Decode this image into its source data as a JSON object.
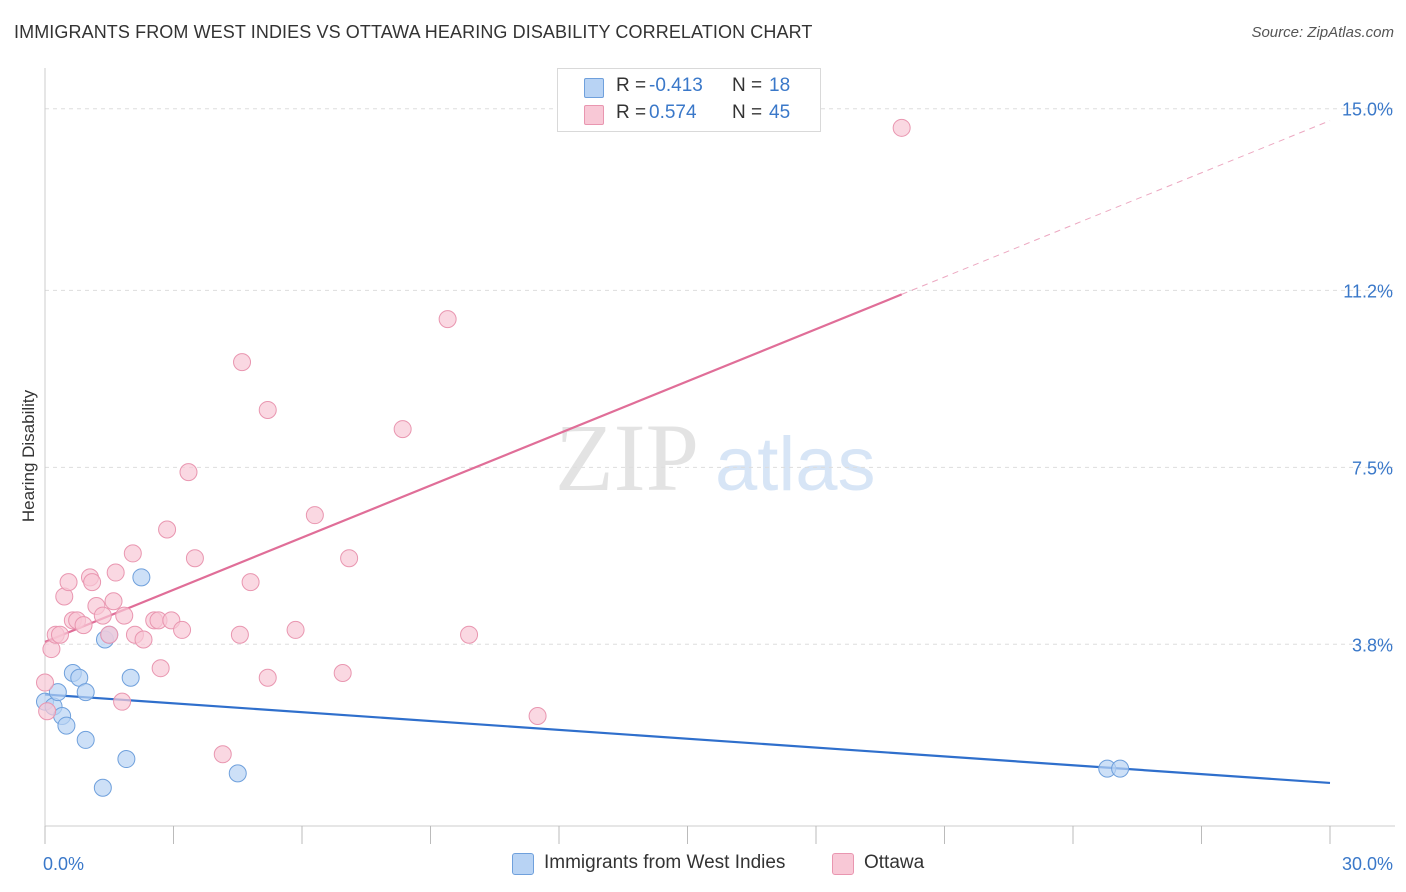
{
  "header": {
    "title": "IMMIGRANTS FROM WEST INDIES VS OTTAWA HEARING DISABILITY CORRELATION CHART",
    "source": "Source: ZipAtlas.com"
  },
  "legend": {
    "rows": [
      {
        "r_label": "R =",
        "r_value": "-0.413",
        "n_label": "N =",
        "n_value": "18"
      },
      {
        "r_label": "R =",
        "r_value": "0.574",
        "n_label": "N =",
        "n_value": "45"
      }
    ]
  },
  "bottom_legend": [
    {
      "label": "Immigrants from West Indies"
    },
    {
      "label": "Ottawa"
    }
  ],
  "watermark": {
    "zip": "ZIP",
    "atlas": "atlas"
  },
  "colors": {
    "blue_fill": "#b8d3f4",
    "blue_stroke": "#6fa0dc",
    "blue_line": "#2f6fcc",
    "pink_fill": "#f8c8d6",
    "pink_stroke": "#e996b0",
    "pink_line": "#e06e98",
    "tick_label": "#3a78c9"
  },
  "chart_data": {
    "type": "scatter",
    "title": "IMMIGRANTS FROM WEST INDIES VS OTTAWA HEARING DISABILITY CORRELATION CHART",
    "xlabel": "",
    "ylabel": "Hearing Disability",
    "xlim": [
      0,
      30
    ],
    "ylim": [
      0,
      15.6
    ],
    "x_tick_labels": [
      "0.0%",
      "30.0%"
    ],
    "y_ticks": [
      3.8,
      7.5,
      11.2,
      15.0
    ],
    "y_tick_labels": [
      "3.8%",
      "7.5%",
      "11.2%",
      "15.0%"
    ],
    "grid": true,
    "series": [
      {
        "name": "Immigrants from West Indies",
        "color": "blue",
        "points": [
          [
            0.0,
            2.6
          ],
          [
            0.2,
            2.5
          ],
          [
            0.3,
            2.8
          ],
          [
            0.4,
            2.3
          ],
          [
            0.5,
            2.1
          ],
          [
            0.65,
            3.2
          ],
          [
            0.8,
            3.1
          ],
          [
            0.95,
            2.8
          ],
          [
            0.95,
            1.8
          ],
          [
            1.35,
            0.8
          ],
          [
            1.4,
            3.9
          ],
          [
            1.5,
            4.0
          ],
          [
            1.9,
            1.4
          ],
          [
            2.0,
            3.1
          ],
          [
            2.25,
            5.2
          ],
          [
            4.5,
            1.1
          ],
          [
            24.8,
            1.2
          ],
          [
            25.1,
            1.2
          ]
        ],
        "trend": {
          "x": [
            0.0,
            30.0
          ],
          "y": [
            2.75,
            0.9
          ],
          "dashed_from": null
        }
      },
      {
        "name": "Ottawa",
        "color": "pink",
        "points": [
          [
            0.0,
            3.0
          ],
          [
            0.15,
            3.7
          ],
          [
            0.25,
            4.0
          ],
          [
            0.35,
            4.0
          ],
          [
            0.45,
            4.8
          ],
          [
            0.55,
            5.1
          ],
          [
            0.65,
            4.3
          ],
          [
            0.75,
            4.3
          ],
          [
            0.9,
            4.2
          ],
          [
            1.05,
            5.2
          ],
          [
            1.1,
            5.1
          ],
          [
            1.2,
            4.6
          ],
          [
            1.35,
            4.4
          ],
          [
            1.5,
            4.0
          ],
          [
            1.6,
            4.7
          ],
          [
            1.65,
            5.3
          ],
          [
            1.8,
            2.6
          ],
          [
            1.85,
            4.4
          ],
          [
            2.05,
            5.7
          ],
          [
            2.1,
            4.0
          ],
          [
            2.3,
            3.9
          ],
          [
            2.55,
            4.3
          ],
          [
            2.65,
            4.3
          ],
          [
            2.7,
            3.3
          ],
          [
            2.85,
            6.2
          ],
          [
            2.95,
            4.3
          ],
          [
            3.2,
            4.1
          ],
          [
            3.35,
            7.4
          ],
          [
            3.5,
            5.6
          ],
          [
            4.15,
            1.5
          ],
          [
            4.55,
            4.0
          ],
          [
            4.6,
            9.7
          ],
          [
            4.8,
            5.1
          ],
          [
            5.2,
            8.7
          ],
          [
            5.2,
            3.1
          ],
          [
            5.85,
            4.1
          ],
          [
            6.3,
            6.5
          ],
          [
            6.95,
            3.2
          ],
          [
            7.1,
            5.6
          ],
          [
            8.35,
            8.3
          ],
          [
            9.4,
            10.6
          ],
          [
            9.9,
            4.0
          ],
          [
            11.5,
            2.3
          ],
          [
            20.0,
            14.6
          ],
          [
            0.05,
            2.4
          ]
        ],
        "trend": {
          "x": [
            0.0,
            30.0
          ],
          "y": [
            3.85,
            14.75
          ],
          "dashed_from": 20.0
        }
      }
    ]
  }
}
